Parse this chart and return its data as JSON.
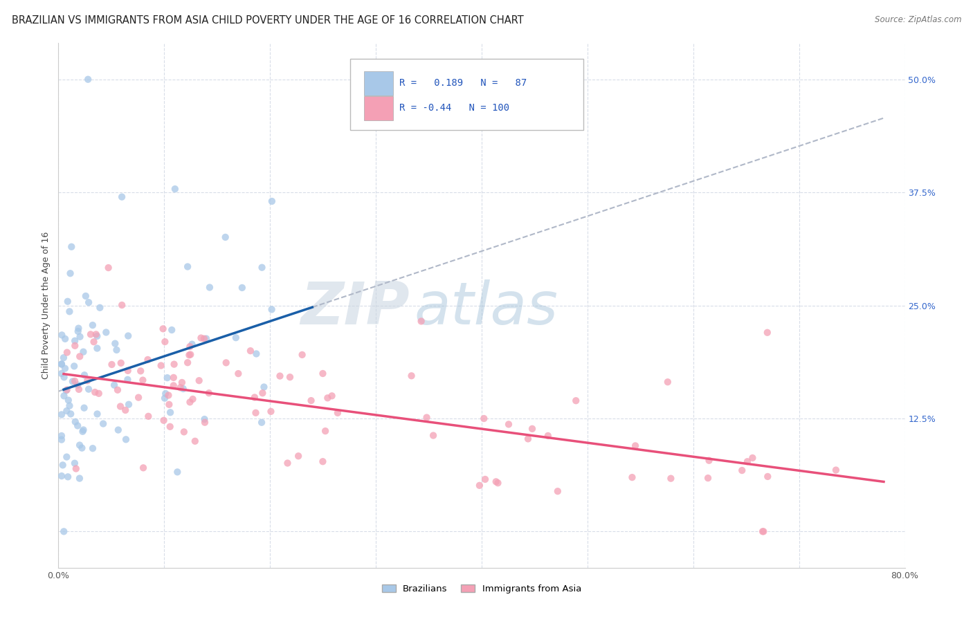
{
  "title": "BRAZILIAN VS IMMIGRANTS FROM ASIA CHILD POVERTY UNDER THE AGE OF 16 CORRELATION CHART",
  "source": "Source: ZipAtlas.com",
  "ylabel": "Child Poverty Under the Age of 16",
  "xlim": [
    0.0,
    0.8
  ],
  "ylim": [
    -0.04,
    0.54
  ],
  "ytick_vals": [
    0.0,
    0.125,
    0.25,
    0.375,
    0.5
  ],
  "ytick_labels": [
    "",
    "12.5%",
    "25.0%",
    "37.5%",
    "50.0%"
  ],
  "blue_R": 0.189,
  "blue_N": 87,
  "pink_R": -0.44,
  "pink_N": 100,
  "blue_color": "#a8c8e8",
  "pink_color": "#f4a0b5",
  "blue_line_color": "#1a5fa8",
  "pink_line_color": "#e8507a",
  "dashed_line_color": "#b0b8c8",
  "watermark_zip": "ZIP",
  "watermark_atlas": "atlas",
  "legend_label_blue": "Brazilians",
  "legend_label_pink": "Immigrants from Asia",
  "background_color": "#ffffff",
  "grid_color": "#d8dde8",
  "title_fontsize": 10.5,
  "axis_label_fontsize": 9,
  "tick_fontsize": 9,
  "blue_line_x": [
    0.005,
    0.24
  ],
  "blue_line_y": [
    0.155,
    0.248
  ],
  "pink_line_x": [
    0.005,
    0.78
  ],
  "pink_line_y": [
    0.175,
    0.055
  ],
  "dashed_line_x": [
    0.1,
    0.78
  ],
  "dashed_line_y": [
    0.205,
    0.455
  ]
}
